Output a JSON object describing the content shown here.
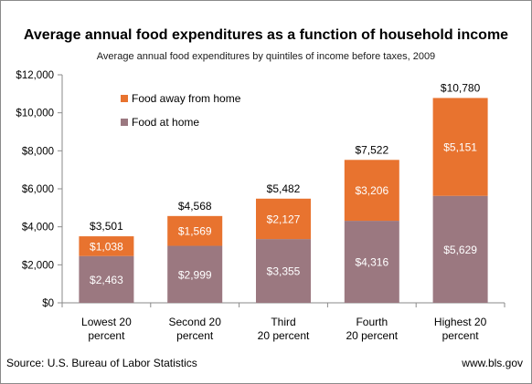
{
  "title": "Average annual food expenditures as a function of household income",
  "subtitle": "Average annual food expenditures  by quintiles of income before taxes, 2009",
  "source": "Source: U.S. Bureau of Labor Statistics",
  "website": "www.bls.gov",
  "colors": {
    "food_at_home": "#9B7880",
    "food_away": "#E8732F",
    "axis": "#8a8a8a"
  },
  "chart_data": {
    "type": "bar",
    "stacked": true,
    "categories": [
      [
        "Lowest 20",
        "percent"
      ],
      [
        "Second 20",
        "percent"
      ],
      [
        "Third",
        "20 percent"
      ],
      [
        "Fourth",
        "20 percent"
      ],
      [
        "Highest 20",
        "percent"
      ]
    ],
    "series": [
      {
        "name": "Food at home",
        "values": [
          2463,
          2999,
          3355,
          4316,
          5629
        ],
        "labels": [
          "$2,463",
          "$2,999",
          "$3,355",
          "$4,316",
          "$5,629"
        ]
      },
      {
        "name": "Food away  from home",
        "values": [
          1038,
          1569,
          2127,
          3206,
          5151
        ],
        "labels": [
          "$1,038",
          "$1,569",
          "$2,127",
          "$3,206",
          "$5,151"
        ]
      }
    ],
    "totals": [
      "$3,501",
      "$4,568",
      "$5,482",
      "$7,522",
      "$10,780"
    ],
    "ylim": [
      0,
      12000
    ],
    "yticks": [
      0,
      2000,
      4000,
      6000,
      8000,
      10000,
      12000
    ],
    "ytick_labels": [
      "$0",
      "$2,000",
      "$4,000",
      "$6,000",
      "$8,000",
      "$10,000",
      "$12,000"
    ],
    "grid": false,
    "legend_position": "top-left"
  }
}
